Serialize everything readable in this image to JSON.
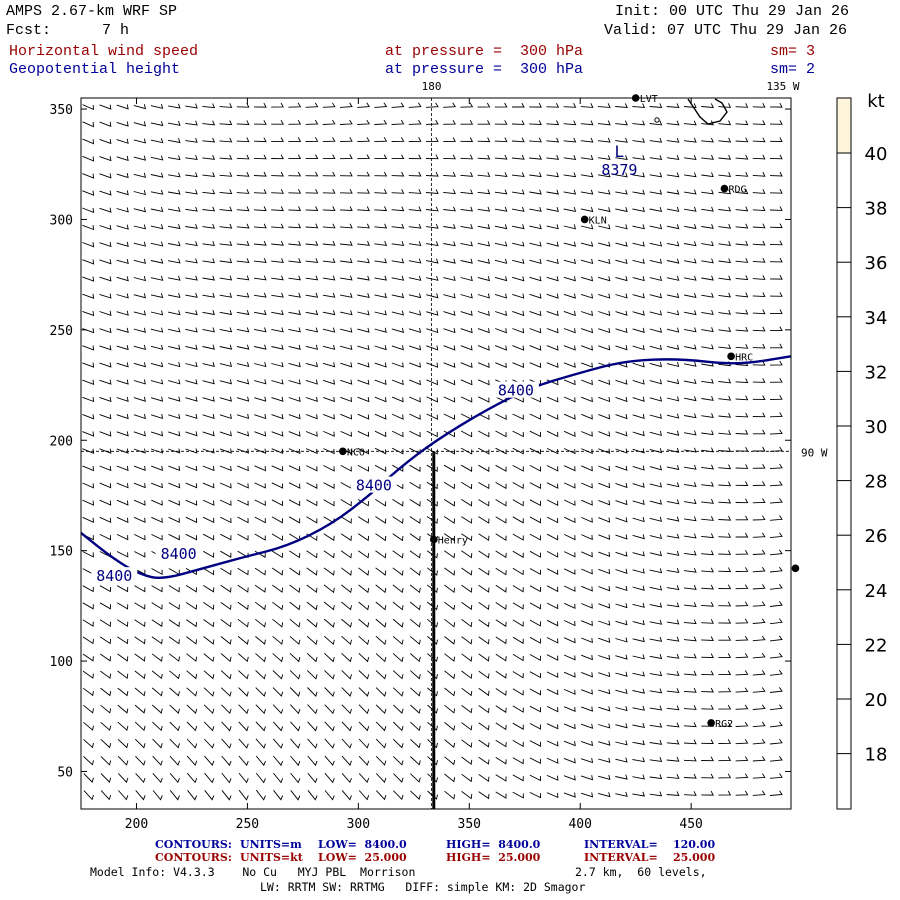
{
  "header": {
    "title": "AMPS 2.67-km WRF SP",
    "init": "Init: 00 UTC Thu 29 Jan 26",
    "fcst_label": "Fcst:",
    "fcst_value": "7 h",
    "valid": "Valid: 07 UTC Thu 29 Jan 26",
    "field1_name": "Horizontal wind speed",
    "field1_level": "at pressure =  300 hPa",
    "field1_sm": "sm= 3",
    "field2_name": "Geopotential height",
    "field2_level": "at pressure =  300 hPa",
    "field2_sm": "sm= 2"
  },
  "map_labels": {
    "meridian_180": "180",
    "meridian_135w": "135 W",
    "meridian_90w": "90 W",
    "low_symbol": "L",
    "low_value": "8379"
  },
  "stations": [
    {
      "name": "LVT",
      "x": 425,
      "y": 355
    },
    {
      "name": "RDG",
      "x": 465,
      "y": 314
    },
    {
      "name": "KLN",
      "x": 402,
      "y": 300
    },
    {
      "name": "HRC",
      "x": 468,
      "y": 238
    },
    {
      "name": "NCO",
      "x": 293,
      "y": 195
    },
    {
      "name": "Henry",
      "x": 334,
      "y": 155
    },
    {
      "name": "RG2",
      "x": 459,
      "y": 72
    },
    {
      "name": "",
      "x": 497,
      "y": 142
    }
  ],
  "colorbar": {
    "unit": "kt",
    "ticks": [
      "40",
      "38",
      "36",
      "34",
      "32",
      "30",
      "28",
      "26",
      "24",
      "22",
      "20",
      "18"
    ]
  },
  "chart_data": {
    "type": "contour-wind-map",
    "xlim": [
      175,
      495
    ],
    "ylim": [
      33,
      355
    ],
    "xticks": [
      200,
      250,
      300,
      350,
      400,
      450
    ],
    "yticks": [
      50,
      100,
      150,
      200,
      250,
      300,
      350
    ],
    "contours": [
      {
        "field": "Geopotential height",
        "value": 8400,
        "units": "m",
        "label": "8400",
        "points": [
          [
            175,
            158
          ],
          [
            190,
            146
          ],
          [
            202,
            139
          ],
          [
            212,
            137
          ],
          [
            230,
            142
          ],
          [
            248,
            147
          ],
          [
            268,
            152
          ],
          [
            288,
            162
          ],
          [
            305,
            175
          ],
          [
            318,
            187
          ],
          [
            335,
            200
          ],
          [
            358,
            214
          ],
          [
            378,
            224
          ],
          [
            398,
            230
          ],
          [
            420,
            236
          ],
          [
            445,
            237
          ],
          [
            470,
            234
          ],
          [
            495,
            238
          ]
        ],
        "label_positions": [
          [
            190,
            138
          ],
          [
            219,
            148
          ],
          [
            307,
            179
          ],
          [
            371,
            222
          ]
        ]
      }
    ],
    "low_center": {
      "label": "L",
      "value": 8379,
      "x": 419,
      "y": 332
    },
    "cross_section": {
      "x": 334,
      "y_from": 33,
      "y_to": 195
    },
    "ref_lines": {
      "meridian_180_x": 333,
      "meridian_90w_y": 195
    },
    "wind_barbs_kt": "light (~5 kt) throughout domain"
  },
  "footer": {
    "c1_label": "CONTOURS:",
    "c1_units": "UNITS=m",
    "c1_low": "LOW=  8400.0",
    "c1_high": "HIGH=  8400.0",
    "c1_interval": "INTERVAL=    120.00",
    "c2_label": "CONTOURS:",
    "c2_units": "UNITS=kt",
    "c2_low": "LOW=  25.000",
    "c2_high": "HIGH=  25.000",
    "c2_interval": "INTERVAL=    25.000",
    "model_info": "Model Info: V4.3.3    No Cu   MYJ PBL  Morrison",
    "grid_info": "2.7 km,  60 levels,",
    "physics_info": "LW: RRTM SW: RRTMG   DIFF: simple KM: 2D Smagor"
  },
  "colors": {
    "contour": "#000080",
    "axis_red": "#990000",
    "axis_blue": "#000099",
    "colorbar_top": "#fdf6dc"
  }
}
